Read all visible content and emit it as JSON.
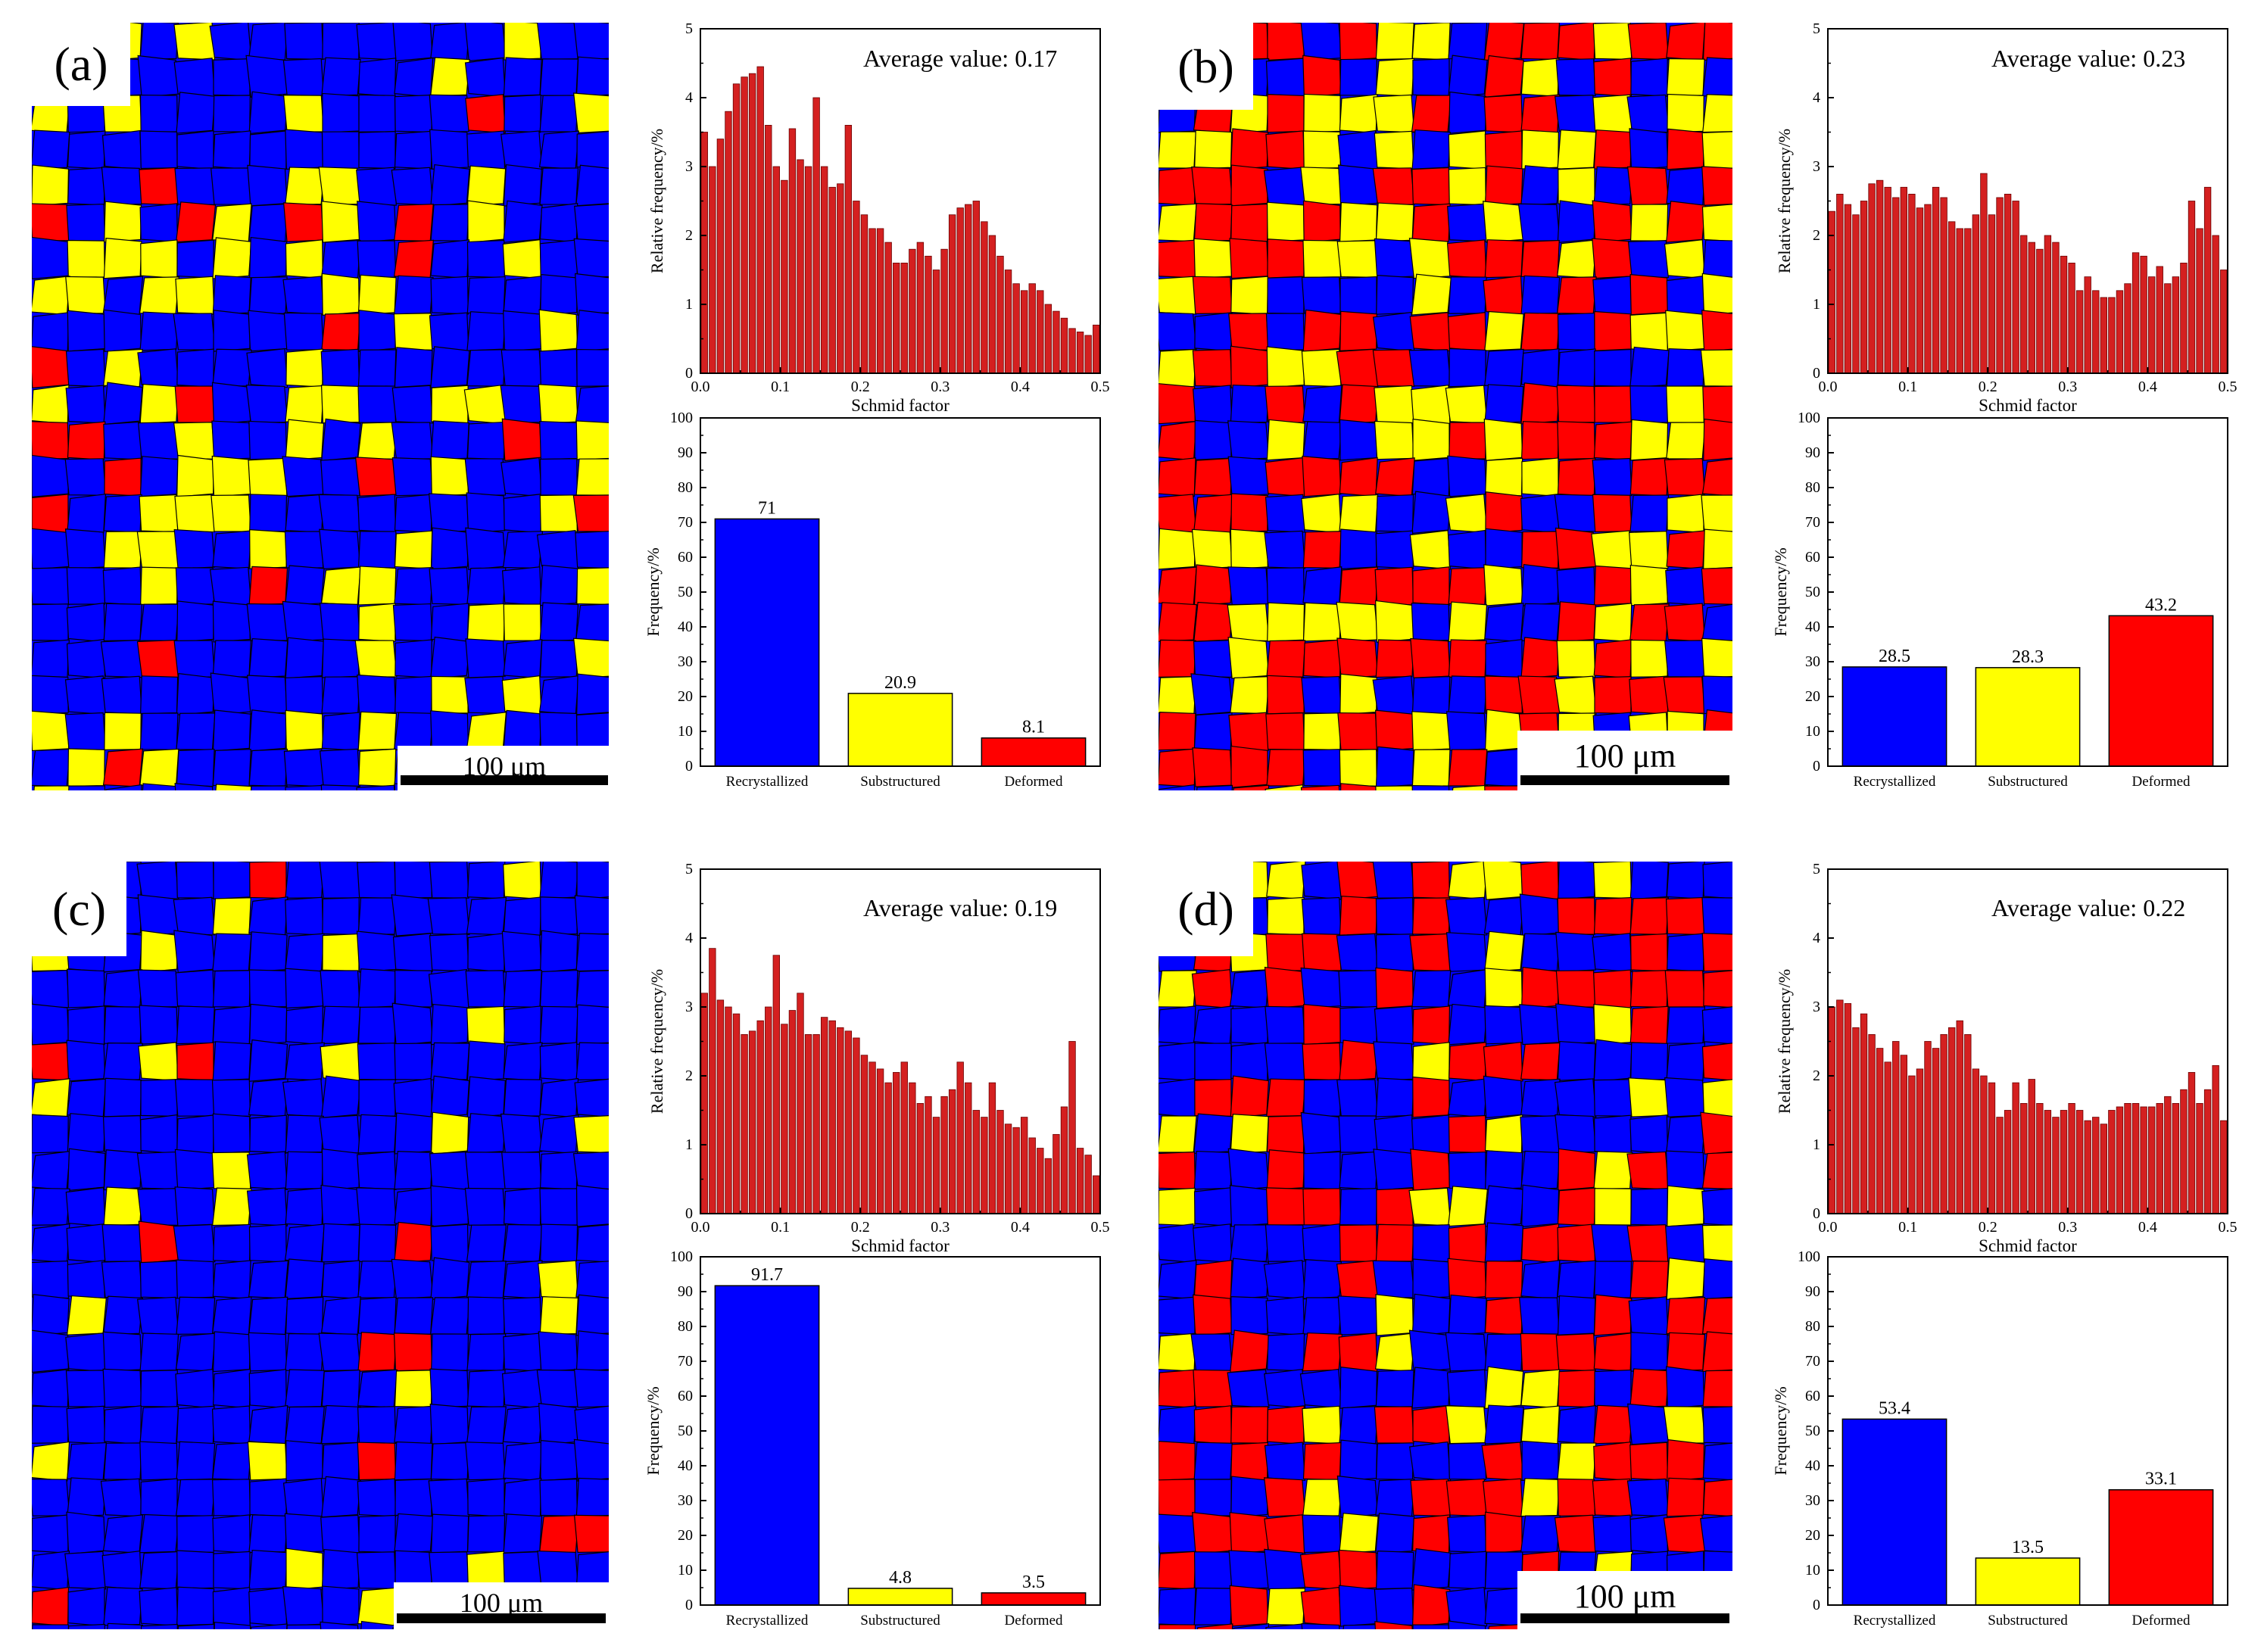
{
  "colors": {
    "recrystallized": "#0000ff",
    "substructured": "#ffff00",
    "deformed": "#ff0000",
    "histogram": "#d42020"
  },
  "panels": [
    {
      "id": "a",
      "label": "(a)",
      "scale_bar": "100 μm"
    },
    {
      "id": "b",
      "label": "(b)",
      "scale_bar": "100 μm"
    },
    {
      "id": "c",
      "label": "(c)",
      "scale_bar": "100 μm"
    },
    {
      "id": "d",
      "label": "(d)",
      "scale_bar": "100 μm"
    }
  ],
  "chart_data": [
    {
      "panel": "a",
      "type": "bar",
      "annotation": "Average value:  0.17",
      "xlabel": "Schmid factor",
      "ylabel": "Relative frequency/%",
      "xlim": [
        0,
        0.5
      ],
      "ylim": [
        0,
        5
      ],
      "xticks": [
        "0.0",
        "0.1",
        "0.2",
        "0.3",
        "0.4",
        "0.5"
      ],
      "yticks": [
        "0",
        "1",
        "2",
        "3",
        "4",
        "5"
      ],
      "bin_width": 0.01,
      "values": [
        3.5,
        3.0,
        3.4,
        3.8,
        4.2,
        4.3,
        4.35,
        4.45,
        3.6,
        3.0,
        2.8,
        3.55,
        3.1,
        3.0,
        4.0,
        3.0,
        2.7,
        2.75,
        3.6,
        2.5,
        2.3,
        2.1,
        2.1,
        1.9,
        1.6,
        1.6,
        1.8,
        1.9,
        1.7,
        1.5,
        1.8,
        2.3,
        2.4,
        2.45,
        2.5,
        2.2,
        2.0,
        1.7,
        1.5,
        1.3,
        1.2,
        1.3,
        1.2,
        1.0,
        0.9,
        0.8,
        0.65,
        0.6,
        0.55,
        0.7
      ]
    },
    {
      "panel": "a",
      "type": "bar",
      "xlabel": "",
      "ylabel": "Frequency/%",
      "ylim": [
        0,
        100
      ],
      "yticks": [
        "0",
        "10",
        "20",
        "30",
        "40",
        "50",
        "60",
        "70",
        "80",
        "90",
        "100"
      ],
      "categories": [
        "Recrystallized",
        "Substructured",
        "Deformed"
      ],
      "values": [
        71,
        20.9,
        8.1
      ],
      "data_labels": [
        "71",
        "20.9",
        "8.1"
      ]
    },
    {
      "panel": "b",
      "type": "bar",
      "annotation": "Average value: 0.23",
      "xlabel": "Schmid factor",
      "ylabel": "Relative frequency/%",
      "xlim": [
        0,
        0.5
      ],
      "ylim": [
        0,
        5
      ],
      "xticks": [
        "0.0",
        "0.1",
        "0.2",
        "0.3",
        "0.4",
        "0.5"
      ],
      "yticks": [
        "0",
        "1",
        "2",
        "3",
        "4",
        "5"
      ],
      "bin_width": 0.01,
      "values": [
        2.35,
        2.6,
        2.45,
        2.3,
        2.5,
        2.75,
        2.8,
        2.7,
        2.55,
        2.7,
        2.6,
        2.4,
        2.45,
        2.7,
        2.55,
        2.2,
        2.1,
        2.1,
        2.3,
        2.9,
        2.3,
        2.55,
        2.6,
        2.5,
        2.0,
        1.9,
        1.8,
        2.0,
        1.9,
        1.7,
        1.6,
        1.2,
        1.4,
        1.2,
        1.1,
        1.1,
        1.2,
        1.3,
        1.75,
        1.7,
        1.4,
        1.55,
        1.3,
        1.4,
        1.6,
        2.5,
        2.1,
        2.7,
        2.0,
        1.5
      ]
    },
    {
      "panel": "b",
      "type": "bar",
      "xlabel": "",
      "ylabel": "Frequency/%",
      "ylim": [
        0,
        100
      ],
      "yticks": [
        "0",
        "10",
        "20",
        "30",
        "40",
        "50",
        "60",
        "70",
        "80",
        "90",
        "100"
      ],
      "categories": [
        "Recrystallized",
        "Substructured",
        "Deformed"
      ],
      "values": [
        28.5,
        28.3,
        43.2
      ],
      "data_labels": [
        "28.5",
        "28.3",
        "43.2"
      ]
    },
    {
      "panel": "c",
      "type": "bar",
      "annotation": "Average value: 0.19",
      "xlabel": "Schmid factor",
      "ylabel": "Relative frequency/%",
      "xlim": [
        0,
        0.5
      ],
      "ylim": [
        0,
        5
      ],
      "xticks": [
        "0.0",
        "0.1",
        "0.2",
        "0.3",
        "0.4",
        "0.5"
      ],
      "yticks": [
        "0",
        "1",
        "2",
        "3",
        "4",
        "5"
      ],
      "bin_width": 0.01,
      "values": [
        3.2,
        3.85,
        3.1,
        3.0,
        2.9,
        2.6,
        2.65,
        2.8,
        3.0,
        3.75,
        2.75,
        2.95,
        3.2,
        2.6,
        2.6,
        2.85,
        2.8,
        2.7,
        2.65,
        2.55,
        2.3,
        2.2,
        2.1,
        1.9,
        2.05,
        2.2,
        1.9,
        1.6,
        1.7,
        1.4,
        1.7,
        1.8,
        2.2,
        1.9,
        1.5,
        1.4,
        1.9,
        1.5,
        1.3,
        1.25,
        1.4,
        1.1,
        0.95,
        0.8,
        1.15,
        1.55,
        2.5,
        0.95,
        0.85,
        0.55
      ]
    },
    {
      "panel": "c",
      "type": "bar",
      "xlabel": "",
      "ylabel": "Frequency/%",
      "ylim": [
        0,
        100
      ],
      "yticks": [
        "0",
        "10",
        "20",
        "30",
        "40",
        "50",
        "60",
        "70",
        "80",
        "90",
        "100"
      ],
      "categories": [
        "Recrystallized",
        "Substructured",
        "Deformed"
      ],
      "values": [
        91.7,
        4.8,
        3.5
      ],
      "data_labels": [
        "91.7",
        "4.8",
        "3.5"
      ]
    },
    {
      "panel": "d",
      "type": "bar",
      "annotation": "Average value: 0.22",
      "xlabel": "Schmid factor",
      "ylabel": "Relative frequency/%",
      "xlim": [
        0,
        0.5
      ],
      "ylim": [
        0,
        5
      ],
      "xticks": [
        "0.0",
        "0.1",
        "0.2",
        "0.3",
        "0.4",
        "0.5"
      ],
      "yticks": [
        "0",
        "1",
        "2",
        "3",
        "4",
        "5"
      ],
      "bin_width": 0.01,
      "values": [
        3.0,
        3.1,
        3.05,
        2.7,
        2.9,
        2.6,
        2.4,
        2.2,
        2.5,
        2.3,
        2.0,
        2.1,
        2.5,
        2.4,
        2.6,
        2.7,
        2.8,
        2.6,
        2.1,
        2.0,
        1.9,
        1.4,
        1.5,
        1.9,
        1.6,
        1.95,
        1.6,
        1.5,
        1.4,
        1.5,
        1.6,
        1.5,
        1.35,
        1.4,
        1.3,
        1.5,
        1.55,
        1.6,
        1.6,
        1.55,
        1.55,
        1.6,
        1.7,
        1.6,
        1.8,
        2.05,
        1.6,
        1.8,
        2.15,
        1.35
      ]
    },
    {
      "panel": "d",
      "type": "bar",
      "xlabel": "",
      "ylabel": "Frequency/%",
      "ylim": [
        0,
        100
      ],
      "yticks": [
        "0",
        "10",
        "20",
        "30",
        "40",
        "50",
        "60",
        "70",
        "80",
        "90",
        "100"
      ],
      "categories": [
        "Recrystallized",
        "Substructured",
        "Deformed"
      ],
      "values": [
        53.4,
        13.5,
        33.1
      ],
      "data_labels": [
        "53.4",
        "13.5",
        "33.1"
      ]
    }
  ]
}
